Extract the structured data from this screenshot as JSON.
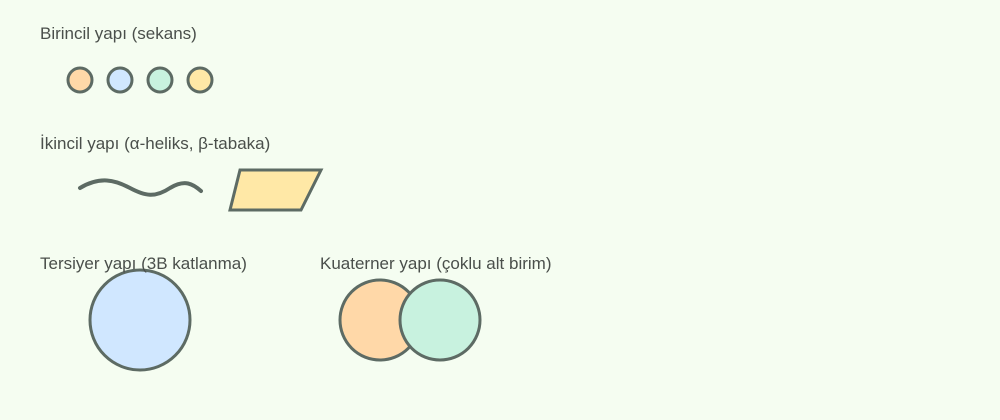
{
  "labels": {
    "primary": "Birincil yapı (sekans)",
    "secondary": "İkincil yapı (α-heliks, β-tabaka)",
    "tertiary": "Tersiyer yapı (3B katlanma)",
    "quaternary": "Kuaterner yapı (çoklu alt birim)"
  },
  "colors": {
    "background": "#f5fdf1",
    "stroke": "#5d6b64",
    "orange": "#ffd8a8",
    "blue": "#d0e7ff",
    "green": "#c8f2df",
    "yellow": "#ffe8a6",
    "text": "#4a4f4b"
  }
}
